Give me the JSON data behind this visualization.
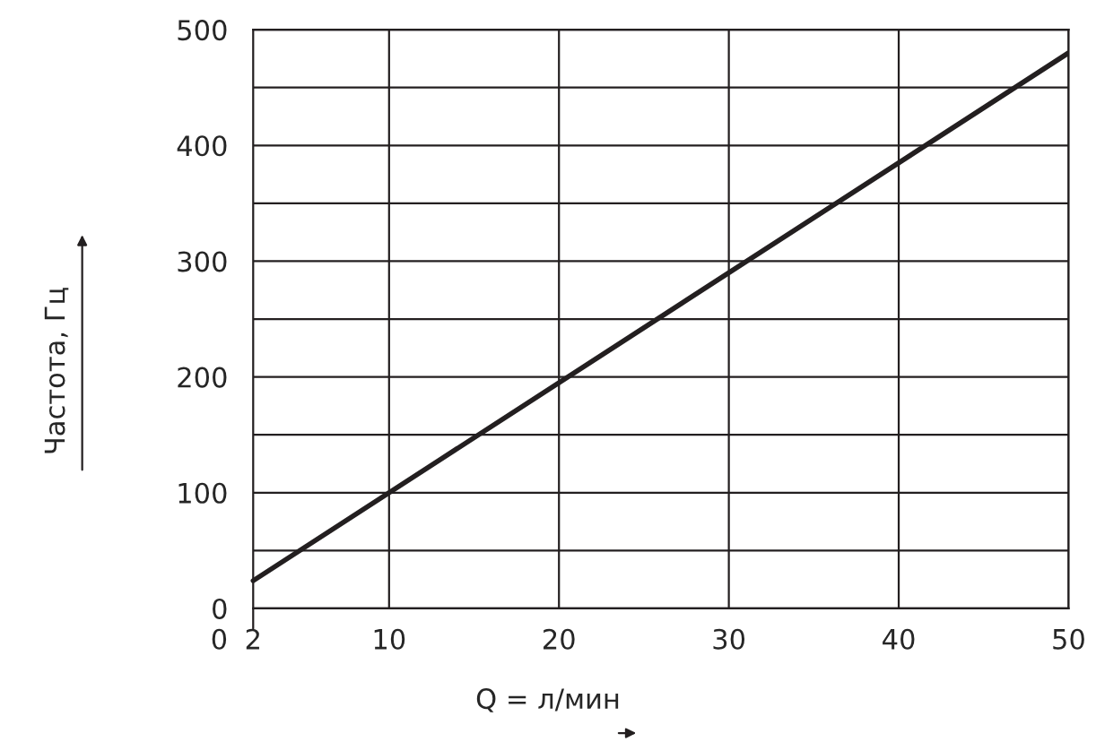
{
  "chart_data": {
    "type": "line",
    "xlabel": "Q = л/мин",
    "ylabel": "Частота, Гц",
    "x": [
      2,
      50
    ],
    "series": [
      {
        "color": "#231f20",
        "values": [
          24,
          480
        ]
      }
    ],
    "xlim": [
      0,
      50
    ],
    "xticks": [
      0,
      2,
      10,
      20,
      30,
      40,
      50
    ],
    "ylim": [
      0,
      500
    ],
    "yticks": [
      0,
      {
        "value": 50,
        "label": null
      },
      100,
      {
        "value": 150,
        "label": null
      },
      200,
      {
        "value": 250,
        "label": null
      },
      300,
      {
        "value": 350,
        "label": null
      },
      400,
      {
        "value": 450,
        "label": null
      },
      500
    ],
    "grid": true,
    "legend": false,
    "marker": "none",
    "line_style": "solid"
  }
}
